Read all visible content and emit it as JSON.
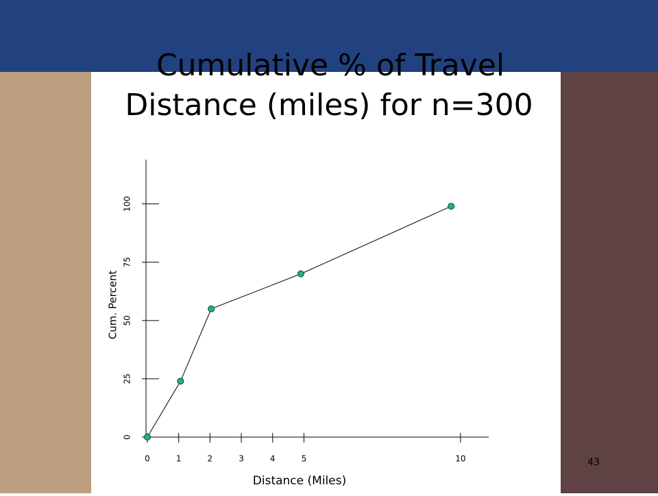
{
  "chart_data": {
    "type": "line",
    "title": "Cumulative % of Travel",
    "subtitle": "Distance (miles) for n=300",
    "x_label": "Distance (Miles)",
    "y_label": "Cum. Percent",
    "x": [
      0,
      1.06,
      2.04,
      4.9,
      9.7
    ],
    "series": [
      {
        "name": "Cum. Percent",
        "color": "#1fb37f",
        "values": [
          0,
          24,
          55,
          70,
          99
        ]
      }
    ],
    "xlim": [
      0,
      10.9
    ],
    "xticks": [
      0,
      1,
      2,
      3,
      4,
      5,
      10
    ],
    "ylim": [
      0,
      119
    ],
    "yticks": [
      0,
      25,
      50,
      75,
      100
    ],
    "page_number": "43"
  }
}
